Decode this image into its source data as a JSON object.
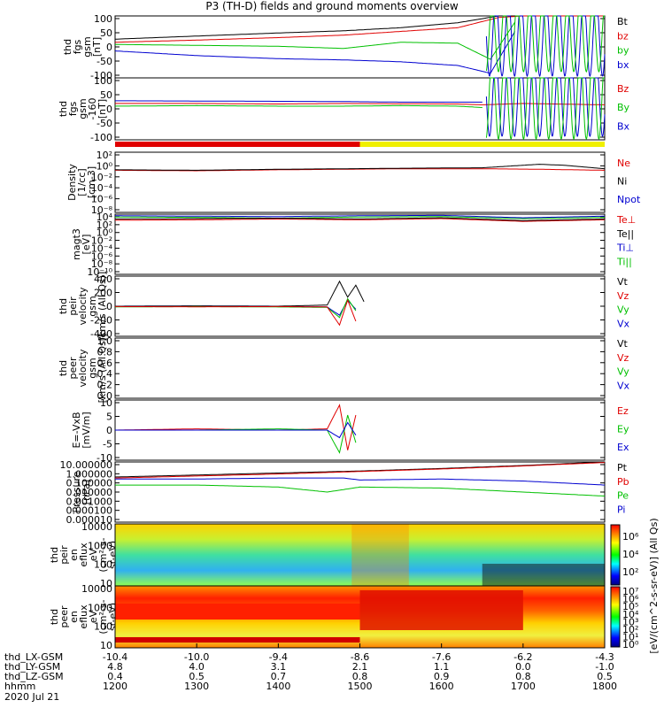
{
  "title": "P3 (TH-D) fields and ground moments overview",
  "date": "2020 Jul 21",
  "colors": {
    "black": "#000000",
    "red": "#e00000",
    "green": "#00c000",
    "blue": "#0000d0",
    "yellow": "#f0f000"
  },
  "panels": [
    {
      "id": "fgs",
      "ylabel": [
        "thd",
        "fgs",
        "gsm",
        "[nT]"
      ],
      "yticks": [
        "100",
        "50",
        "0",
        "-50",
        "-100"
      ],
      "yrange": [
        -100,
        100
      ],
      "legend": [
        "Bt",
        "bz",
        "by",
        "bx"
      ],
      "legend_colors": [
        "black",
        "red",
        "green",
        "blue"
      ]
    },
    {
      "id": "fgs_m160",
      "ylabel": [
        "thd",
        "fgs",
        "gsm",
        "-160",
        "[nT]"
      ],
      "yticks": [
        "100",
        "50",
        "0",
        "-50",
        "-100"
      ],
      "yrange": [
        -130,
        100
      ],
      "legend": [
        "Bz",
        "By",
        "Bx"
      ],
      "legend_colors": [
        "red",
        "green",
        "blue"
      ]
    },
    {
      "id": "density",
      "ylabel": [
        "Density",
        "[1/cc]",
        "[cm-3]"
      ],
      "yticks": [
        "10²",
        "10⁰",
        "10⁻²",
        "10⁻⁴",
        "10⁻⁶",
        "10⁻⁸"
      ],
      "yrange": [
        -9,
        3
      ],
      "log": true,
      "legend": [
        "Ne",
        "Ni",
        "Npot"
      ],
      "legend_colors": [
        "red",
        "black",
        "blue"
      ]
    },
    {
      "id": "temp",
      "ylabel": [
        "magt3",
        "[eV]"
      ],
      "yticks": [
        "10⁴",
        "10²",
        "10⁰",
        "10⁻²",
        "10⁻⁴",
        "10⁻⁶",
        "10⁻⁸",
        "10⁻¹⁰"
      ],
      "yrange": [
        -11,
        4
      ],
      "log": true,
      "legend": [
        "Te⊥",
        "Te||",
        "Ti⊥",
        "Ti||"
      ],
      "legend_colors": [
        "red",
        "black",
        "blue",
        "green"
      ]
    },
    {
      "id": "peir_vel",
      "ylabel": [
        "thd",
        "peir",
        "velocity",
        "gsm",
        "[km/s (All Qs)]"
      ],
      "yticks": [
        "400",
        "200",
        "0",
        "-200",
        "-400"
      ],
      "yrange": [
        -400,
        400
      ],
      "legend": [
        "Vt",
        "Vz",
        "Vy",
        "Vx"
      ],
      "legend_colors": [
        "black",
        "red",
        "green",
        "blue"
      ]
    },
    {
      "id": "peer_vel",
      "ylabel": [
        "thd",
        "peer",
        "velocity",
        "gsm",
        "[km/s (All Qs)]"
      ],
      "yticks": [
        "1.0",
        "0.8",
        "0.6",
        "0.4",
        "0.2",
        "0.0"
      ],
      "yrange": [
        0,
        1
      ],
      "legend": [
        "Vt",
        "Vz",
        "Vy",
        "Vx"
      ],
      "legend_colors": [
        "black",
        "red",
        "green",
        "blue"
      ]
    },
    {
      "id": "efield",
      "ylabel": [
        "E=-VxB",
        "[mV/m]"
      ],
      "yticks": [
        "10",
        "5",
        "0",
        "-5",
        "-10"
      ],
      "yrange": [
        -12,
        12
      ],
      "legend": [
        "Ez",
        "Ey",
        "Ex"
      ],
      "legend_colors": [
        "red",
        "green",
        "blue"
      ]
    },
    {
      "id": "pressure",
      "ylabel": [
        "Pressure",
        "[nPa]"
      ],
      "yticks": [
        "10.000000",
        "1.000000",
        "0.100000",
        "0.010000",
        "0.001000",
        "0.000100",
        "0.000010"
      ],
      "yrange": [
        -5,
        1
      ],
      "log": true,
      "legend": [
        "Pt",
        "Pb",
        "Pe",
        "Pi"
      ],
      "legend_colors": [
        "black",
        "red",
        "green",
        "blue"
      ]
    },
    {
      "id": "peir_spec",
      "ylabel": [
        "thd",
        "peir",
        "en",
        "eflux",
        "eV",
        "(cm²-s-",
        "sr-eV)"
      ],
      "yticks": [
        "10000",
        "1000",
        "100",
        "10"
      ]
    },
    {
      "id": "peer_spec",
      "ylabel": [
        "thd",
        "peer",
        "en",
        "eflux",
        "eV",
        "(cm²-s-",
        "sr-eV)"
      ],
      "yticks": [
        "10000",
        "1000",
        "100",
        "10"
      ]
    }
  ],
  "colorbar1": {
    "ticks": [
      "10⁶",
      "10⁴",
      "10²"
    ]
  },
  "colorbar2": {
    "ticks": [
      "10⁷",
      "10⁶",
      "10⁵",
      "10⁴",
      "10³",
      "10²",
      "10¹",
      "10⁰"
    ]
  },
  "colorbar_label": "[eV/(cm^2-s-sr-eV)] (All Qs)",
  "ephemeris": {
    "rows": [
      {
        "label": "thd_LX-GSM",
        "values": [
          "-10.4",
          "-10.0",
          "-9.4",
          "-8.6",
          "-7.6",
          "-6.2",
          "-4.3"
        ]
      },
      {
        "label": "thd_LY-GSM",
        "values": [
          "4.8",
          "4.0",
          "3.1",
          "2.1",
          "1.1",
          "0.0",
          "-1.0"
        ]
      },
      {
        "label": "thd_LZ-GSM",
        "values": [
          "0.4",
          "0.5",
          "0.7",
          "0.8",
          "0.9",
          "0.8",
          "0.5"
        ]
      },
      {
        "label": "hhmm",
        "values": [
          "1200",
          "1300",
          "1400",
          "1500",
          "1600",
          "1700",
          "1800"
        ]
      }
    ]
  },
  "chart_data": {
    "type": "line",
    "x_hhmm": [
      "1200",
      "1300",
      "1400",
      "1500",
      "1600",
      "1700",
      "1800"
    ],
    "x_hours": [
      12,
      13,
      14,
      15,
      16,
      17,
      18
    ],
    "series": [
      {
        "panel": "fgs",
        "name": "Bt",
        "x": [
          12,
          13,
          14,
          14.8,
          15.5,
          16.2,
          16.7,
          17.0,
          17.5,
          18.0
        ],
        "y": [
          25,
          35,
          45,
          52,
          62,
          78,
          100,
          100,
          100,
          100
        ]
      },
      {
        "panel": "fgs",
        "name": "bz",
        "x": [
          12,
          13,
          14,
          14.8,
          15.5,
          16.2,
          16.7,
          17.0,
          18.0
        ],
        "y": [
          15,
          22,
          30,
          38,
          50,
          62,
          95,
          100,
          100
        ]
      },
      {
        "panel": "fgs",
        "name": "by",
        "x": [
          12,
          13,
          14,
          14.8,
          15.5,
          16.2,
          16.6,
          16.9
        ],
        "y": [
          8,
          5,
          2,
          -5,
          15,
          12,
          -40,
          80
        ]
      },
      {
        "panel": "fgs",
        "name": "bx",
        "x": [
          12,
          13,
          14,
          14.8,
          15.5,
          16.2,
          16.6,
          16.9
        ],
        "y": [
          -13,
          -28,
          -38,
          -42,
          -48,
          -60,
          -85,
          50
        ]
      },
      {
        "panel": "fgs_m160",
        "name": "Bz",
        "x": [
          12,
          13,
          14,
          14.8,
          15.5,
          16.2,
          16.5,
          17.0,
          18.0
        ],
        "y": [
          5,
          5,
          3,
          5,
          4,
          3,
          0,
          5,
          0
        ]
      },
      {
        "panel": "fgs_m160",
        "name": "By",
        "x": [
          12,
          13,
          14,
          14.8,
          15.5,
          16.2,
          16.5
        ],
        "y": [
          -5,
          -3,
          -5,
          -5,
          -3,
          -5,
          -10
        ]
      },
      {
        "panel": "fgs_m160",
        "name": "Bx",
        "x": [
          12,
          13,
          14,
          14.8,
          15.5,
          16.2,
          16.5
        ],
        "y": [
          15,
          14,
          13,
          12,
          10,
          10,
          10
        ]
      },
      {
        "panel": "density",
        "name": "Ne",
        "x": [
          12,
          13,
          14,
          14.8,
          15.5,
          16.5,
          17.2,
          18.0
        ],
        "y": [
          -0.6,
          -0.7,
          -0.5,
          -0.4,
          -0.3,
          -0.3,
          -0.4,
          -0.6
        ]
      },
      {
        "panel": "density",
        "name": "Ni",
        "x": [
          12,
          13,
          14,
          14.8,
          15.5,
          16.5,
          17.2,
          17.5,
          18.0
        ],
        "y": [
          -0.5,
          -0.6,
          -0.4,
          -0.3,
          -0.2,
          -0.1,
          0.6,
          0.4,
          -0.3
        ]
      },
      {
        "panel": "temp",
        "name": "Te⊥",
        "x": [
          12,
          13,
          14,
          15,
          16,
          17,
          18
        ],
        "y": [
          2.5,
          2.6,
          2.8,
          2.6,
          2.9,
          2.2,
          2.6
        ]
      },
      {
        "panel": "temp",
        "name": "Ti||",
        "x": [
          12,
          13,
          14,
          15,
          16,
          17,
          18
        ],
        "y": [
          3.3,
          3.2,
          3.0,
          3.3,
          3.4,
          2.9,
          3.2
        ]
      },
      {
        "panel": "temp",
        "name": "Te||",
        "x": [
          12,
          13,
          14,
          15,
          16,
          17,
          18
        ],
        "y": [
          2.8,
          2.9,
          3.0,
          2.8,
          3.1,
          2.4,
          2.8
        ]
      },
      {
        "panel": "temp",
        "name": "Ti⊥",
        "x": [
          12,
          13,
          14,
          15,
          16,
          17,
          18
        ],
        "y": [
          3.6,
          3.5,
          3.4,
          3.6,
          3.7,
          3.1,
          3.5
        ]
      },
      {
        "panel": "peir_vel",
        "name": "Vt",
        "x": [
          12,
          13,
          14,
          14.6,
          14.75,
          14.85,
          14.95,
          15.05
        ],
        "y": [
          0,
          5,
          0,
          15,
          330,
          120,
          280,
          60
        ]
      },
      {
        "panel": "peir_vel",
        "name": "Vx",
        "x": [
          12,
          13,
          14,
          14.6,
          14.75,
          14.85,
          14.95
        ],
        "y": [
          -5,
          -5,
          -5,
          -10,
          -120,
          80,
          -40
        ]
      },
      {
        "panel": "peir_vel",
        "name": "Vy",
        "x": [
          12,
          13,
          14,
          14.6,
          14.75,
          14.85,
          14.95
        ],
        "y": [
          -10,
          -5,
          -10,
          -15,
          -150,
          100,
          -60
        ]
      },
      {
        "panel": "peir_vel",
        "name": "Vz",
        "x": [
          12,
          13,
          14,
          14.6,
          14.75,
          14.85,
          14.95
        ],
        "y": [
          -5,
          -8,
          -5,
          -10,
          -250,
          80,
          -200
        ]
      },
      {
        "panel": "efield",
        "name": "Ez",
        "x": [
          12,
          13,
          14,
          14.6,
          14.75,
          14.85,
          14.95
        ],
        "y": [
          0,
          0.5,
          0,
          0.5,
          10,
          -8,
          6
        ]
      },
      {
        "panel": "efield",
        "name": "Ey",
        "x": [
          12,
          13,
          14,
          14.6,
          14.75,
          14.85,
          14.95
        ],
        "y": [
          0,
          0,
          0.5,
          0,
          -9,
          6,
          -5
        ]
      },
      {
        "panel": "efield",
        "name": "Ex",
        "x": [
          12,
          13,
          14,
          14.6,
          14.75,
          14.85,
          14.95
        ],
        "y": [
          0,
          0,
          0,
          0,
          -3,
          3,
          -2
        ]
      },
      {
        "panel": "pressure",
        "name": "Pt",
        "x": [
          12,
          13,
          14,
          15,
          16,
          17,
          18
        ],
        "y": [
          -0.5,
          -0.3,
          -0.1,
          0.1,
          0.35,
          0.65,
          1.0
        ]
      },
      {
        "panel": "pressure",
        "name": "Pb",
        "x": [
          12,
          13,
          14,
          15,
          16,
          17,
          18
        ],
        "y": [
          -0.6,
          -0.4,
          -0.2,
          0.05,
          0.3,
          0.6,
          0.95
        ]
      },
      {
        "panel": "pressure",
        "name": "Pi",
        "x": [
          12,
          13,
          14,
          14.8,
          15,
          16,
          17,
          18
        ],
        "y": [
          -0.7,
          -0.7,
          -0.6,
          -0.6,
          -0.8,
          -0.7,
          -0.9,
          -1.3
        ]
      },
      {
        "panel": "pressure",
        "name": "Pe",
        "x": [
          12,
          13,
          14,
          14.6,
          15,
          16,
          17,
          18
        ],
        "y": [
          -1.3,
          -1.3,
          -1.5,
          -2.0,
          -1.5,
          -1.6,
          -2.0,
          -2.4
        ]
      }
    ],
    "xlim": [
      12,
      18
    ],
    "mode_bar": {
      "segments": [
        {
          "from": 12,
          "to": 15.0,
          "color": "red"
        },
        {
          "from": 15.0,
          "to": 18,
          "color": "yellow"
        }
      ]
    }
  }
}
